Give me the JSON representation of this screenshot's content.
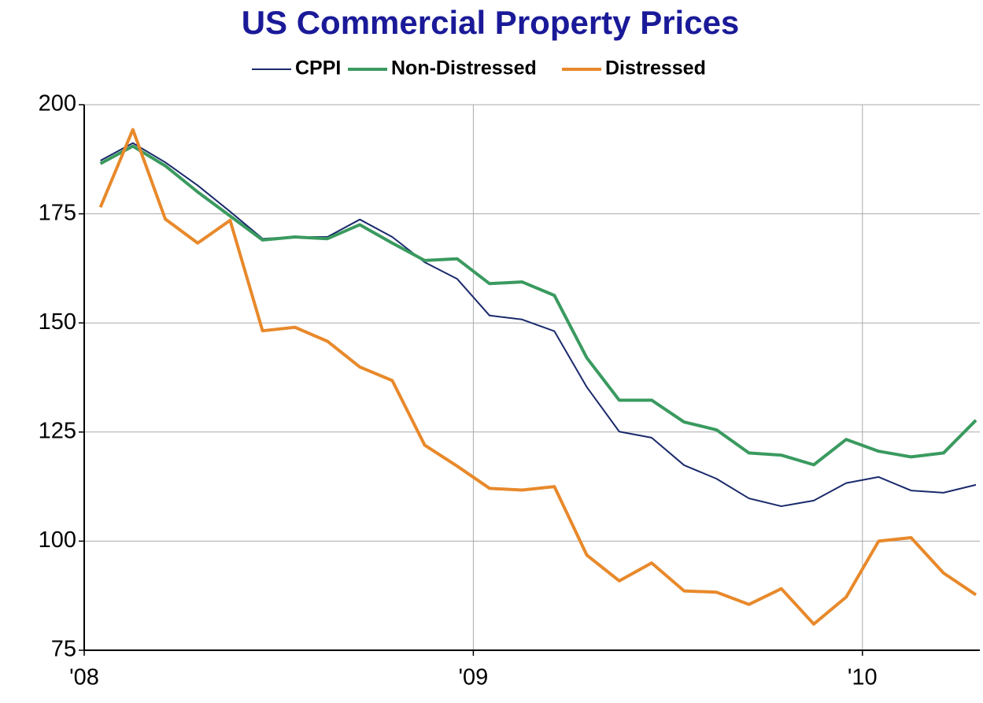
{
  "chart_data": {
    "type": "line",
    "title": "US Commercial Property Prices",
    "x": [
      0.5,
      1.5,
      2.5,
      3.5,
      4.5,
      5.5,
      6.5,
      7.5,
      8.5,
      9.5,
      10.5,
      11.5,
      12.5,
      13.5,
      14.5,
      15.5,
      16.5,
      17.5,
      18.5,
      19.5,
      20.5,
      21.5,
      22.5,
      23.5,
      24.5,
      25.5,
      26.5,
      27.5
    ],
    "series": [
      {
        "name": "CPPI",
        "color": "#1a2a6c",
        "line_width": 2,
        "values": [
          187.2,
          191.2,
          186.8,
          181.5,
          175.5,
          169.3,
          169.7,
          169.7,
          173.7,
          169.7,
          163.9,
          160.1,
          151.7,
          150.8,
          148.1,
          135.3,
          125.1,
          123.7,
          117.4,
          114.3,
          109.8,
          108.0,
          109.3,
          113.3,
          114.7,
          111.6,
          111.1,
          112.9
        ]
      },
      {
        "name": "Non-Distressed",
        "color": "#3a9a5f",
        "line_width": 4,
        "values": [
          186.5,
          190.5,
          186.0,
          180.0,
          174.5,
          169.0,
          169.7,
          169.3,
          172.5,
          168.3,
          164.3,
          164.7,
          159.0,
          159.4,
          156.3,
          142.0,
          132.3,
          132.3,
          127.3,
          125.5,
          120.2,
          119.7,
          117.5,
          123.3,
          120.6,
          119.3,
          120.2,
          127.7
        ]
      },
      {
        "name": "Distressed",
        "color": "#e8892b",
        "line_width": 4,
        "values": [
          176.5,
          194.3,
          173.8,
          168.3,
          173.5,
          148.2,
          149.0,
          145.8,
          139.9,
          136.8,
          122.0,
          117.2,
          112.1,
          111.7,
          112.5,
          96.8,
          90.9,
          95.0,
          88.6,
          88.3,
          85.5,
          89.1,
          81.0,
          87.2,
          100.0,
          100.8,
          92.7,
          87.7
        ]
      }
    ],
    "xlim": [
      0,
      27.5
    ],
    "xticks": [
      {
        "value": 0,
        "label": "'08"
      },
      {
        "value": 12,
        "label": "'09"
      },
      {
        "value": 24,
        "label": "'10"
      }
    ],
    "ylim": [
      75,
      200
    ],
    "yticks": [
      75,
      100,
      125,
      150,
      175,
      200
    ],
    "grid": true,
    "legend": "top"
  }
}
